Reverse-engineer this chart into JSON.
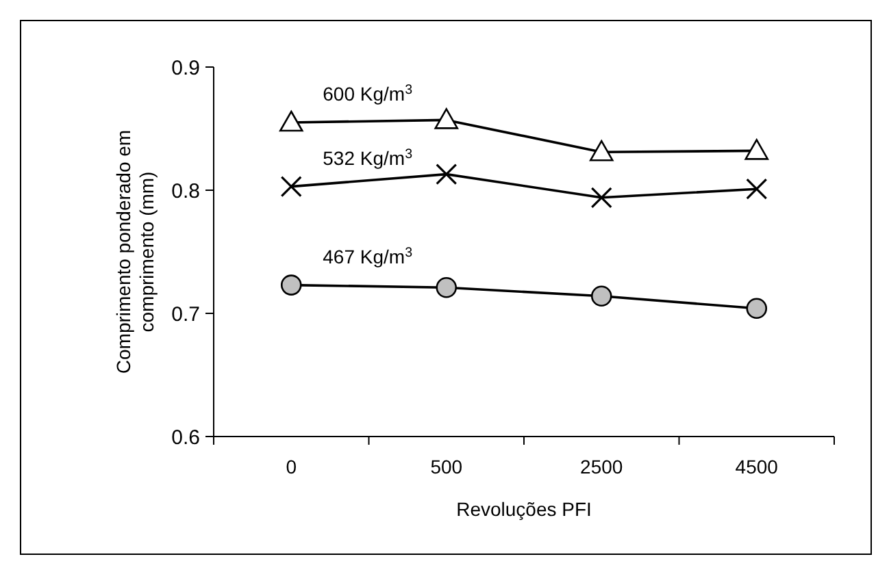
{
  "chart_data": {
    "type": "line",
    "xlabel": "Revoluções PFI",
    "ylabel": "Comprimento ponderado em comprimento (mm)",
    "categories": [
      "0",
      "500",
      "2500",
      "4500"
    ],
    "ylim": [
      0.6,
      0.9
    ],
    "yticks": [
      0.6,
      0.7,
      0.8,
      0.9
    ],
    "series": [
      {
        "name": "600 Kg/m$^{3}$",
        "color": "#000000",
        "marker": "triangle",
        "values": [
          0.855,
          0.857,
          0.831,
          0.832
        ]
      },
      {
        "name": "532 Kg/m$^{3}$",
        "color": "#000000",
        "marker": "cross",
        "values": [
          0.803,
          0.813,
          0.794,
          0.801
        ]
      },
      {
        "name": "467 Kg/m$^{3}$",
        "color": "#000000",
        "marker": "circle",
        "values": [
          0.723,
          0.721,
          0.714,
          0.704
        ]
      }
    ]
  }
}
